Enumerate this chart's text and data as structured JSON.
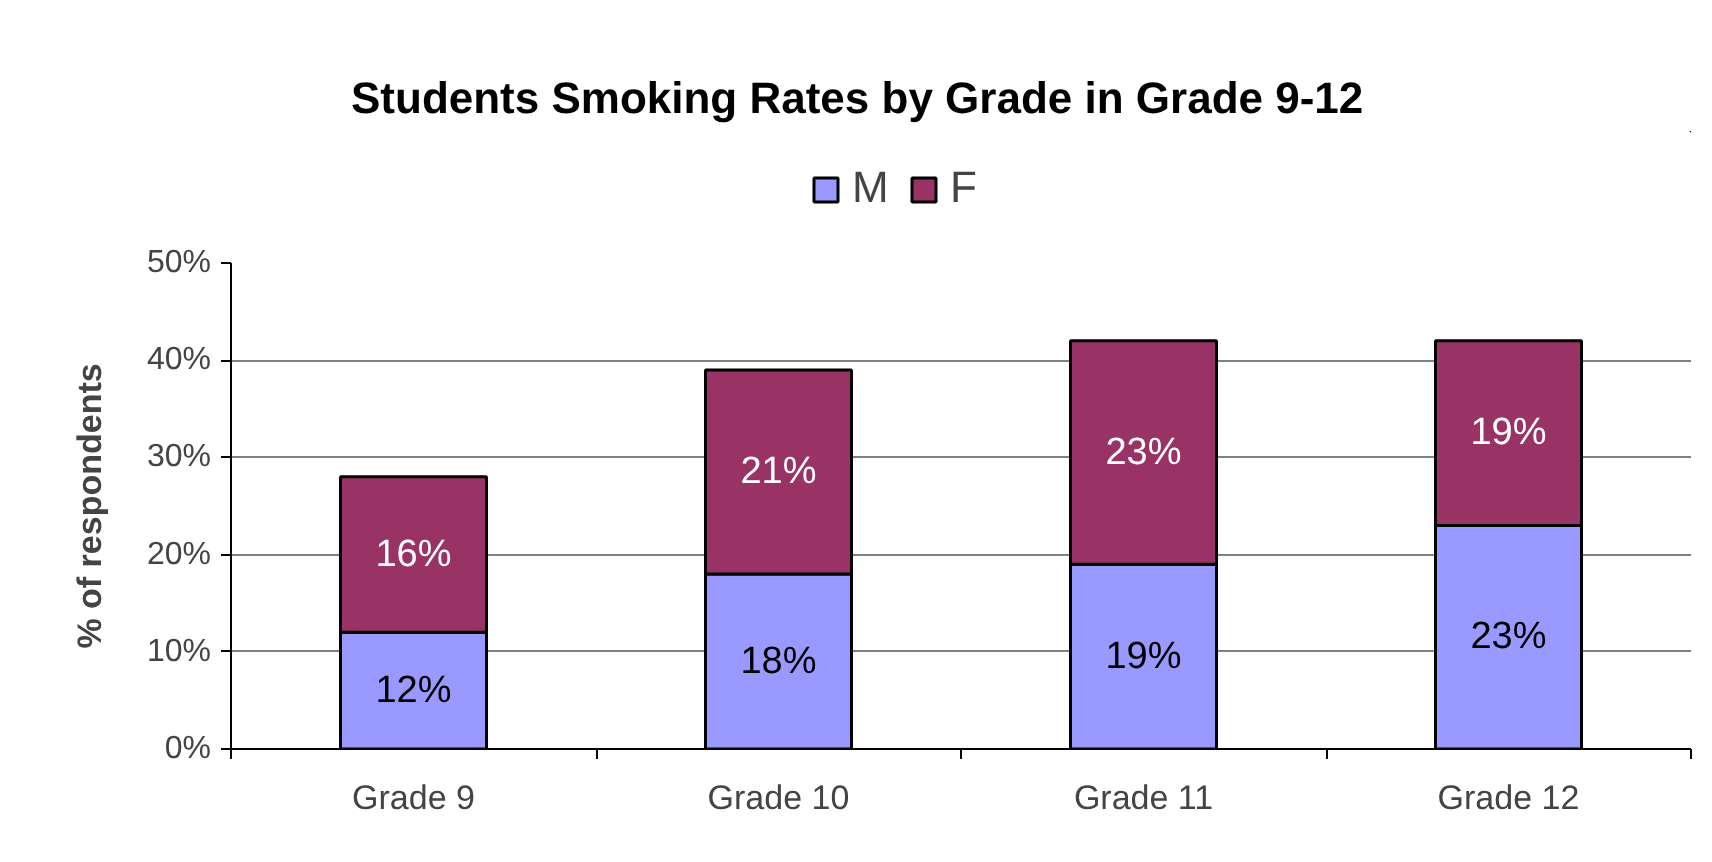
{
  "chart_data": {
    "type": "bar",
    "title": "Students Smoking Rates by Grade in Grade 9-12",
    "ylabel": "% of respondents",
    "categories": [
      "Grade 9",
      "Grade 10",
      "Grade 11",
      "Grade 12"
    ],
    "stacked": true,
    "series": [
      {
        "name": "M",
        "color": "#9999ff",
        "values": [
          12,
          18,
          19,
          23
        ],
        "value_labels": [
          "12%",
          "18%",
          "19%",
          "23%"
        ]
      },
      {
        "name": "F",
        "color": "#993366",
        "values": [
          16,
          21,
          23,
          19
        ],
        "value_labels": [
          "16%",
          "21%",
          "23%",
          "19%"
        ]
      }
    ],
    "ylim": [
      0,
      50
    ],
    "yticks": [
      {
        "value": 0,
        "label": "0%"
      },
      {
        "value": 10,
        "label": "10%"
      },
      {
        "value": 20,
        "label": "20%"
      },
      {
        "value": 30,
        "label": "30%"
      },
      {
        "value": 40,
        "label": "40%"
      },
      {
        "value": 50,
        "label": "50%"
      }
    ],
    "grid": "y",
    "legend": "top"
  }
}
